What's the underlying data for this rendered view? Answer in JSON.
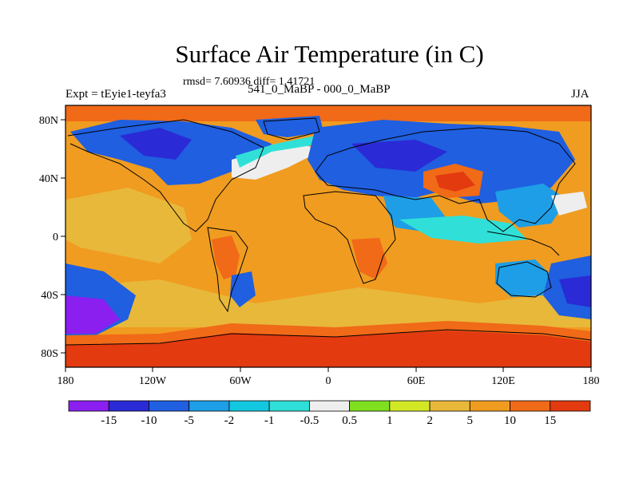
{
  "figure": {
    "title": "Surface Air Temperature (in C)",
    "stats": "rmsd= 7.60936 diff= 1.41721",
    "experiment": "Expt = tEyie1-teyfa3",
    "comparison": "541_0_MaBP - 000_0_MaBP",
    "season": "JJA"
  },
  "axes": {
    "lon_ticks": [
      "180",
      "120W",
      "60W",
      "0",
      "60E",
      "120E",
      "180"
    ],
    "lat_ticks": [
      "80N",
      "40N",
      "0",
      "40S",
      "80S"
    ]
  },
  "colorbar": {
    "labels": [
      "-15",
      "-10",
      "-5",
      "-2",
      "-1",
      "-0.5",
      "0.5",
      "1",
      "2",
      "5",
      "10",
      "15"
    ],
    "colors": [
      "#8a1ff0",
      "#2a2ad6",
      "#1f5fe0",
      "#1e9ee6",
      "#14c7e0",
      "#30e0d8",
      "#eeeeee",
      "#80e020",
      "#d2e824",
      "#e8b83a",
      "#f09c20",
      "#f06a18",
      "#e33a10"
    ]
  },
  "map_colors": {
    "ocean_warm": "#f09c20",
    "ocean_mid": "#e8b83a",
    "hot": "#e33a10",
    "orange": "#f06a18",
    "cold_blue": "#1f5fe0",
    "deep_blue": "#2a2ad6",
    "purple": "#8a1ff0",
    "light_blue": "#1e9ee6",
    "cyan": "#30e0d8",
    "white": "#eeeeee",
    "yellow_green": "#d2e824",
    "green": "#80e020",
    "coast": "#000000"
  }
}
